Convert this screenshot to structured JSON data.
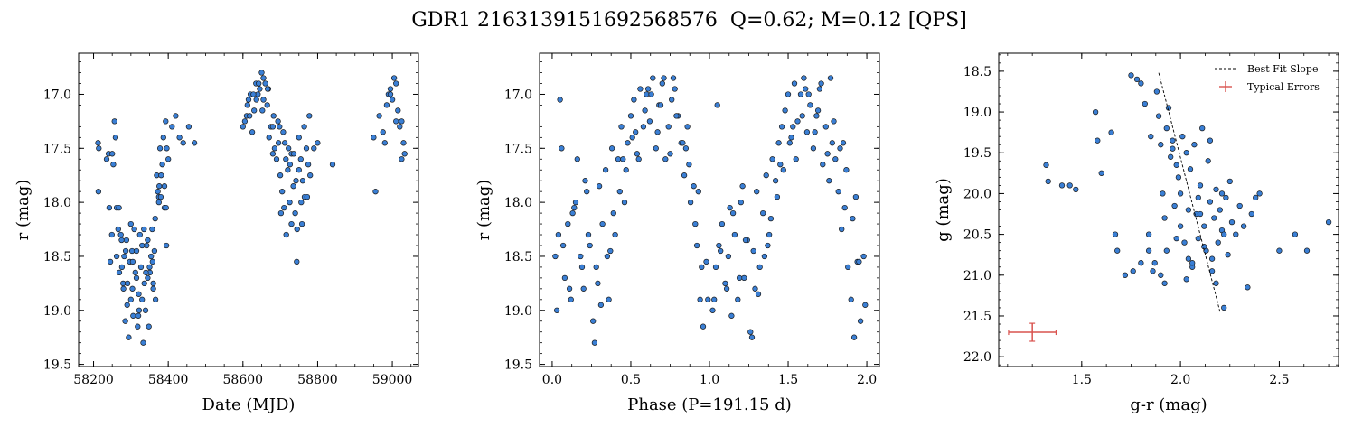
{
  "title": "GDR1 2163139151692568576  Q=0.62; M=0.12 [QPS]",
  "colors": {
    "marker_fill": "#3a7fd5",
    "marker_edge": "#1a1a1a",
    "error_bar": "#d9534f",
    "fit_line": "#000000"
  },
  "chart_data": [
    {
      "type": "scatter",
      "xlabel": "Date (MJD)",
      "ylabel": "r (mag)",
      "xlim": [
        58160,
        59070
      ],
      "ylim": [
        19.52,
        16.62
      ],
      "y_inverted": true,
      "xticks": [
        58200,
        58400,
        58600,
        58800,
        59000
      ],
      "yticks": [
        17.0,
        17.5,
        18.0,
        18.5,
        19.0,
        19.5
      ],
      "xtick_labels": [
        "58200",
        "58400",
        "58600",
        "58800",
        "59000"
      ],
      "ytick_labels": [
        "17.0",
        "17.5",
        "18.0",
        "18.5",
        "19.0",
        "19.5"
      ],
      "x": [
        58212,
        58213,
        58214,
        58235,
        58240,
        58242,
        58245,
        58249,
        58253,
        58256,
        58259,
        58262,
        58266,
        58269,
        58273,
        58276,
        58279,
        58282,
        58285,
        58288,
        58291,
        58294,
        58297,
        58300,
        58303,
        58306,
        58309,
        58312,
        58315,
        58318,
        58321,
        58324,
        58327,
        58330,
        58333,
        58336,
        58339,
        58342,
        58345,
        58348,
        58351,
        58354,
        58357,
        58360,
        58363,
        58366,
        58369,
        58372,
        58375,
        58378,
        58381,
        58384,
        58387,
        58390,
        58393,
        58396,
        58400,
        58410,
        58420,
        58430,
        58440,
        58455,
        58470,
        58262,
        58280,
        58300,
        58315,
        58330,
        58345,
        58360,
        58375,
        58390,
        58275,
        58290,
        58305,
        58320,
        58335,
        58350,
        58365,
        58380,
        58395,
        58250,
        58268,
        58286,
        58304,
        58322,
        58340,
        58358,
        58376,
        58394,
        58600,
        58605,
        58610,
        58615,
        58620,
        58625,
        58630,
        58635,
        58640,
        58645,
        58650,
        58655,
        58660,
        58665,
        58670,
        58675,
        58680,
        58685,
        58690,
        58695,
        58700,
        58705,
        58710,
        58715,
        58720,
        58725,
        58730,
        58735,
        58740,
        58745,
        58750,
        58755,
        58760,
        58765,
        58770,
        58775,
        58780,
        58790,
        58800,
        58840,
        58612,
        58628,
        58642,
        58655,
        58668,
        58682,
        58698,
        58712,
        58726,
        58742,
        58756,
        58772,
        58618,
        58636,
        58652,
        58666,
        58680,
        58694,
        58708,
        58722,
        58736,
        58750,
        58764,
        58778,
        58702,
        58716,
        58730,
        58744,
        58758,
        58950,
        58955,
        58965,
        58975,
        58985,
        58990,
        58995,
        59000,
        59005,
        59010,
        59015,
        59020,
        59025,
        59030,
        59033,
        58980,
        58995,
        59010,
        59025
      ],
      "y": [
        17.45,
        17.9,
        17.5,
        17.6,
        17.55,
        18.05,
        18.55,
        18.3,
        17.65,
        17.25,
        17.4,
        18.05,
        18.25,
        18.65,
        18.3,
        18.6,
        18.75,
        18.5,
        19.1,
        18.35,
        18.75,
        19.25,
        18.55,
        18.9,
        18.45,
        19.05,
        18.25,
        18.65,
        18.45,
        19.15,
        18.85,
        18.3,
        18.6,
        18.9,
        19.3,
        18.75,
        19.0,
        18.4,
        18.7,
        19.15,
        18.65,
        18.5,
        18.25,
        18.8,
        18.45,
        18.9,
        17.75,
        17.9,
        18.0,
        17.5,
        17.75,
        17.65,
        17.4,
        17.85,
        17.25,
        17.5,
        17.6,
        17.3,
        17.2,
        17.4,
        17.45,
        17.3,
        17.45,
        18.5,
        18.8,
        18.2,
        18.7,
        18.4,
        18.35,
        18.75,
        17.95,
        18.05,
        18.35,
        18.95,
        18.55,
        19.05,
        18.25,
        18.6,
        18.15,
        17.95,
        18.4,
        17.55,
        18.05,
        18.45,
        18.8,
        19.0,
        18.65,
        18.55,
        17.85,
        18.05,
        17.3,
        17.25,
        17.2,
        17.05,
        17.0,
        17.35,
        17.15,
        16.9,
        17.0,
        16.95,
        16.8,
        17.05,
        16.9,
        17.1,
        17.4,
        17.3,
        17.55,
        17.5,
        17.6,
        17.45,
        17.75,
        17.9,
        18.05,
        17.6,
        17.7,
        18.0,
        17.55,
        17.85,
        18.1,
        18.25,
        17.7,
        17.6,
        17.8,
        17.95,
        17.5,
        17.65,
        17.75,
        17.5,
        17.45,
        17.65,
        17.1,
        17.0,
        16.9,
        16.85,
        16.95,
        17.2,
        17.3,
        17.45,
        17.65,
        17.8,
        18.0,
        17.95,
        17.2,
        17.05,
        17.15,
        16.95,
        17.3,
        17.25,
        17.35,
        17.5,
        17.55,
        17.4,
        17.3,
        17.2,
        18.1,
        18.3,
        18.2,
        18.55,
        18.2,
        17.4,
        17.9,
        17.2,
        17.35,
        17.1,
        17.0,
        16.95,
        17.05,
        16.85,
        16.9,
        17.15,
        17.3,
        17.25,
        17.45,
        17.55,
        17.45,
        17.0,
        17.25,
        17.6
      ],
      "series": [
        {
          "values": []
        }
      ]
    },
    {
      "type": "scatter",
      "xlabel": "Phase (P=191.15 d)",
      "ylabel": "r (mag)",
      "xlim": [
        -0.08,
        2.08
      ],
      "ylim": [
        19.52,
        16.62
      ],
      "y_inverted": true,
      "xticks": [
        0.0,
        0.5,
        1.0,
        1.5,
        2.0
      ],
      "yticks": [
        17.0,
        17.5,
        18.0,
        18.5,
        19.0,
        19.5
      ],
      "xtick_labels": [
        "0.0",
        "0.5",
        "1.0",
        "1.5",
        "2.0"
      ],
      "ytick_labels": [
        "17.0",
        "17.5",
        "18.0",
        "18.5",
        "19.0",
        "19.5"
      ],
      "x": [
        0.02,
        0.04,
        0.06,
        0.08,
        0.1,
        0.12,
        0.14,
        0.16,
        0.18,
        0.2,
        0.22,
        0.24,
        0.26,
        0.28,
        0.3,
        0.32,
        0.34,
        0.36,
        0.38,
        0.4,
        0.42,
        0.44,
        0.46,
        0.48,
        0.5,
        0.52,
        0.54,
        0.56,
        0.58,
        0.6,
        0.62,
        0.64,
        0.66,
        0.68,
        0.7,
        0.72,
        0.74,
        0.76,
        0.78,
        0.8,
        0.82,
        0.84,
        0.86,
        0.88,
        0.9,
        0.92,
        0.94,
        0.96,
        0.98,
        0.03,
        0.07,
        0.11,
        0.15,
        0.19,
        0.23,
        0.27,
        0.31,
        0.35,
        0.39,
        0.43,
        0.47,
        0.51,
        0.55,
        0.59,
        0.63,
        0.67,
        0.71,
        0.75,
        0.79,
        0.83,
        0.87,
        0.91,
        0.95,
        0.99,
        0.05,
        0.13,
        0.21,
        0.29,
        0.37,
        0.45,
        0.53,
        0.61,
        0.69,
        0.77,
        0.85,
        0.93,
        1.02,
        1.04,
        1.06,
        1.08,
        1.1,
        1.12,
        1.14,
        1.16,
        1.18,
        1.2,
        1.22,
        1.24,
        1.26,
        1.28,
        1.3,
        1.32,
        1.34,
        1.36,
        1.38,
        1.4,
        1.42,
        1.44,
        1.46,
        1.48,
        1.5,
        1.52,
        1.54,
        1.56,
        1.58,
        1.6,
        1.62,
        1.64,
        1.66,
        1.68,
        1.7,
        1.72,
        1.74,
        1.76,
        1.78,
        1.8,
        1.82,
        1.84,
        1.86,
        1.88,
        1.9,
        1.92,
        1.94,
        1.96,
        1.98,
        1.03,
        1.07,
        1.11,
        1.15,
        1.19,
        1.23,
        1.27,
        1.31,
        1.35,
        1.39,
        1.43,
        1.47,
        1.51,
        1.55,
        1.59,
        1.63,
        1.67,
        1.71,
        1.75,
        1.79,
        1.83,
        1.87,
        1.91,
        1.95,
        1.99,
        1.05,
        1.13,
        1.21,
        1.29,
        1.37,
        1.45,
        1.53,
        1.61,
        1.69,
        1.77,
        1.85,
        1.93
      ],
      "y": [
        18.5,
        18.3,
        17.5,
        18.7,
        18.2,
        18.9,
        18.05,
        17.6,
        18.5,
        18.8,
        17.9,
        18.4,
        19.1,
        18.6,
        17.85,
        18.2,
        17.7,
        18.9,
        17.5,
        18.3,
        17.6,
        17.3,
        18.0,
        17.45,
        17.2,
        17.05,
        17.55,
        16.95,
        17.3,
        17.0,
        17.25,
        16.85,
        17.5,
        17.1,
        16.9,
        17.6,
        17.3,
        17.05,
        16.95,
        17.2,
        17.45,
        17.75,
        17.3,
        18.0,
        17.85,
        18.4,
        18.9,
        19.15,
        18.55,
        19.0,
        18.4,
        18.8,
        18.0,
        18.6,
        18.3,
        19.3,
        18.95,
        18.5,
        18.1,
        17.9,
        17.7,
        17.4,
        17.6,
        17.15,
        17.0,
        17.35,
        16.85,
        17.55,
        17.2,
        17.45,
        17.65,
        18.2,
        18.6,
        18.9,
        17.05,
        18.1,
        17.8,
        18.75,
        18.45,
        17.6,
        17.35,
        16.95,
        17.1,
        16.85,
        17.5,
        17.9,
        19.0,
        18.6,
        18.4,
        18.2,
        18.75,
        18.5,
        19.05,
        18.3,
        18.9,
        18.0,
        18.7,
        18.35,
        19.2,
        18.45,
        17.9,
        18.6,
        18.1,
        17.75,
        18.3,
        17.6,
        17.8,
        17.45,
        17.3,
        17.15,
        17.0,
        17.4,
        16.9,
        17.25,
        17.0,
        16.85,
        17.35,
        17.1,
        17.5,
        17.2,
        16.95,
        17.65,
        17.3,
        17.8,
        17.45,
        17.6,
        17.9,
        18.25,
        18.05,
        18.6,
        18.9,
        19.25,
        18.55,
        19.1,
        18.5,
        18.9,
        18.45,
        18.8,
        18.1,
        18.7,
        18.35,
        19.25,
        18.85,
        18.5,
        18.15,
        17.95,
        17.7,
        17.45,
        17.6,
        17.2,
        17.0,
        17.35,
        16.9,
        17.55,
        17.25,
        17.5,
        17.7,
        18.15,
        18.55,
        18.95,
        17.1,
        18.05,
        17.85,
        18.8,
        18.4,
        17.65,
        17.3,
        16.95,
        17.15,
        16.85,
        17.45,
        17.95
      ],
      "series": [
        {
          "values": []
        }
      ]
    },
    {
      "type": "scatter",
      "xlabel": "g-r (mag)",
      "ylabel": "g (mag)",
      "xlim": [
        1.08,
        2.8
      ],
      "ylim": [
        22.12,
        18.28
      ],
      "y_inverted": true,
      "xticks": [
        1.5,
        2.0,
        2.5
      ],
      "yticks": [
        18.5,
        19.0,
        19.5,
        20.0,
        20.5,
        21.0,
        21.5,
        22.0
      ],
      "xtick_labels": [
        "1.5",
        "2.0",
        "2.5"
      ],
      "ytick_labels": [
        "18.5",
        "19.0",
        "19.5",
        "20.0",
        "20.5",
        "21.0",
        "21.5",
        "22.0"
      ],
      "legend": [
        "Best Fit Slope",
        "Typical Errors"
      ],
      "legend_placement": "upper-right",
      "fit_line": {
        "x": [
          1.89,
          2.2
        ],
        "y": [
          18.52,
          21.45
        ]
      },
      "typical_error": {
        "x": 1.25,
        "y": 21.7,
        "xerr": 0.12,
        "yerr": 0.11
      },
      "x": [
        1.32,
        1.33,
        1.4,
        1.44,
        1.47,
        1.57,
        1.58,
        1.6,
        1.65,
        1.67,
        1.68,
        1.75,
        1.78,
        1.8,
        1.82,
        1.84,
        1.85,
        1.87,
        1.88,
        1.89,
        1.9,
        1.91,
        1.92,
        1.93,
        1.94,
        1.95,
        1.96,
        1.97,
        1.98,
        1.99,
        2.0,
        2.01,
        2.02,
        2.03,
        2.04,
        2.05,
        2.06,
        2.07,
        2.08,
        2.09,
        2.1,
        2.11,
        2.12,
        2.13,
        2.14,
        2.15,
        2.16,
        2.17,
        2.18,
        2.19,
        2.2,
        2.21,
        2.22,
        2.23,
        2.24,
        2.25,
        2.26,
        2.28,
        2.3,
        2.32,
        2.34,
        2.36,
        2.38,
        2.4,
        2.5,
        2.58,
        2.64,
        2.75,
        1.9,
        1.93,
        1.96,
        2.0,
        2.03,
        2.06,
        2.09,
        2.12,
        2.15,
        2.18,
        2.21,
        1.86,
        1.92,
        1.98,
        2.04,
        2.1,
        2.16,
        2.22,
        1.72,
        1.76,
        1.8,
        1.84
      ],
      "y": [
        19.65,
        19.85,
        19.9,
        19.9,
        19.95,
        19.0,
        19.35,
        19.75,
        19.25,
        20.5,
        20.7,
        18.55,
        18.6,
        18.65,
        18.9,
        20.5,
        19.3,
        20.85,
        18.75,
        19.05,
        19.4,
        20.0,
        20.3,
        19.2,
        18.95,
        19.55,
        19.35,
        20.15,
        19.65,
        19.8,
        20.0,
        19.3,
        20.6,
        19.5,
        20.2,
        19.7,
        20.9,
        19.4,
        20.25,
        20.05,
        19.9,
        19.2,
        20.4,
        20.7,
        19.6,
        20.1,
        20.8,
        20.3,
        19.95,
        20.6,
        20.2,
        20.45,
        21.4,
        20.05,
        20.75,
        19.85,
        20.35,
        20.5,
        20.15,
        20.4,
        21.15,
        20.25,
        20.05,
        20.0,
        20.7,
        20.5,
        20.7,
        20.35,
        21.0,
        20.7,
        19.45,
        20.4,
        21.05,
        20.85,
        20.55,
        20.65,
        19.35,
        21.1,
        20.0,
        20.95,
        21.1,
        20.55,
        20.8,
        20.25,
        20.95,
        20.5,
        21.0,
        20.95,
        20.85,
        20.7
      ],
      "series": [
        {
          "values": []
        }
      ]
    }
  ]
}
